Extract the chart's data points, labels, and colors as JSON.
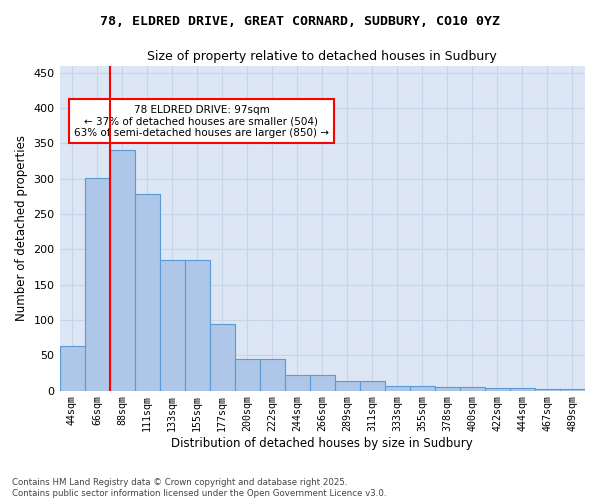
{
  "title_line1": "78, ELDRED DRIVE, GREAT CORNARD, SUDBURY, CO10 0YZ",
  "title_line2": "Size of property relative to detached houses in Sudbury",
  "xlabel": "Distribution of detached houses by size in Sudbury",
  "ylabel": "Number of detached properties",
  "bar_heights": [
    63,
    301,
    340,
    278,
    185,
    185,
    94,
    45,
    45,
    22,
    22,
    13,
    13,
    7,
    7,
    5,
    5,
    4,
    4,
    2,
    2
  ],
  "bin_labels": [
    "44sqm",
    "66sqm",
    "88sqm",
    "111sqm",
    "133sqm",
    "155sqm",
    "177sqm",
    "200sqm",
    "222sqm",
    "244sqm",
    "266sqm",
    "289sqm",
    "311sqm",
    "333sqm",
    "355sqm",
    "378sqm",
    "400sqm",
    "422sqm",
    "444sqm",
    "467sqm",
    "489sqm"
  ],
  "bar_color": "#aec6e8",
  "bar_edge_color": "#5b9bd5",
  "grid_color": "#c8d4e8",
  "background_color": "#dce6f5",
  "vline_color": "red",
  "annotation_text": "78 ELDRED DRIVE: 97sqm\n← 37% of detached houses are smaller (504)\n63% of semi-detached houses are larger (850) →",
  "annotation_box_color": "white",
  "annotation_box_edge_color": "red",
  "ylim": [
    0,
    460
  ],
  "yticks": [
    0,
    50,
    100,
    150,
    200,
    250,
    300,
    350,
    400,
    450
  ],
  "footer_text": "Contains HM Land Registry data © Crown copyright and database right 2025.\nContains public sector information licensed under the Open Government Licence v3.0."
}
